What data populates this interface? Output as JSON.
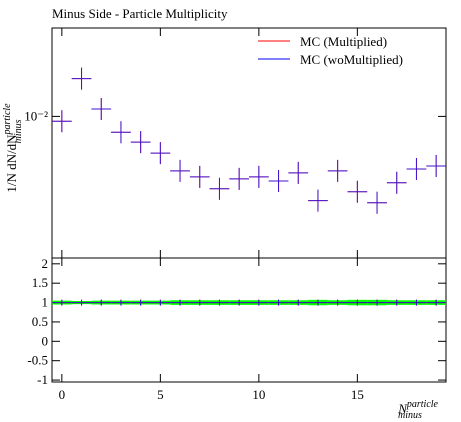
{
  "chart_data": [
    {
      "type": "errorbar",
      "title": "Minus Side - Particle Multiplicity",
      "ylabel": {
        "main": "1/N dN/dN",
        "sup": "particle",
        "sub": "minus"
      },
      "x": [
        0,
        1,
        2,
        3,
        4,
        5,
        6,
        7,
        8,
        9,
        10,
        11,
        12,
        13,
        14,
        15,
        16,
        17,
        18,
        19
      ],
      "series": [
        {
          "name": "MC (Multiplied)",
          "color": "#ff0000",
          "values": [
            0.00968,
            0.01285,
            0.0105,
            0.009,
            0.00843,
            0.00783,
            0.00696,
            0.00669,
            0.00618,
            0.0066,
            0.00669,
            0.00651,
            0.00687,
            0.00571,
            0.00696,
            0.00606,
            0.00563,
            0.00643,
            0.00705,
            0.00719
          ]
        },
        {
          "name": "MC (woMultiplied)",
          "color": "#0000ff",
          "values": [
            0.00968,
            0.01285,
            0.0105,
            0.009,
            0.00843,
            0.00783,
            0.00696,
            0.00669,
            0.00618,
            0.0066,
            0.00669,
            0.00651,
            0.00687,
            0.00571,
            0.00696,
            0.00606,
            0.00563,
            0.00643,
            0.00705,
            0.00719
          ]
        }
      ],
      "xlim": [
        -0.5,
        19.5
      ],
      "xticks": [
        0,
        5,
        10,
        15
      ],
      "ylim": [
        0.0039,
        0.018
      ],
      "yticks": [
        {
          "value": 0.01,
          "label": "10⁻²"
        }
      ],
      "log_y": true,
      "legend": "top-right"
    },
    {
      "type": "band",
      "xlabel": {
        "main": "N",
        "sup": "particle",
        "sub": "minus"
      },
      "x": [
        0,
        1,
        2,
        3,
        4,
        5,
        6,
        7,
        8,
        9,
        10,
        11,
        12,
        13,
        14,
        15,
        16,
        17,
        18,
        19
      ],
      "band": {
        "color": "#00ff00",
        "low": [
          0.95,
          0.96,
          0.95,
          0.95,
          0.95,
          0.95,
          0.94,
          0.94,
          0.94,
          0.94,
          0.94,
          0.94,
          0.94,
          0.93,
          0.94,
          0.93,
          0.93,
          0.94,
          0.94,
          0.94
        ],
        "high": [
          1.05,
          1.04,
          1.05,
          1.05,
          1.05,
          1.05,
          1.06,
          1.06,
          1.06,
          1.06,
          1.06,
          1.06,
          1.06,
          1.07,
          1.06,
          1.07,
          1.07,
          1.06,
          1.06,
          1.06
        ]
      },
      "series": [
        {
          "color": "#ff0000",
          "values": [
            1,
            1,
            1,
            1,
            1,
            1,
            1,
            1,
            1,
            1,
            1,
            1,
            1,
            1,
            1,
            1,
            1,
            1,
            1,
            1
          ]
        },
        {
          "color": "#0000ff",
          "values": [
            1,
            1,
            1,
            1,
            1,
            1,
            1,
            1,
            1,
            1,
            1,
            1,
            1,
            1,
            1,
            1,
            1,
            1,
            1,
            1
          ]
        }
      ],
      "xlim": [
        -0.5,
        19.5
      ],
      "xticks": [
        0,
        5,
        10,
        15
      ],
      "ylim": [
        -1.05,
        2.15
      ],
      "yticks": [
        -1,
        -0.5,
        0,
        0.5,
        1,
        1.5,
        2
      ]
    }
  ]
}
